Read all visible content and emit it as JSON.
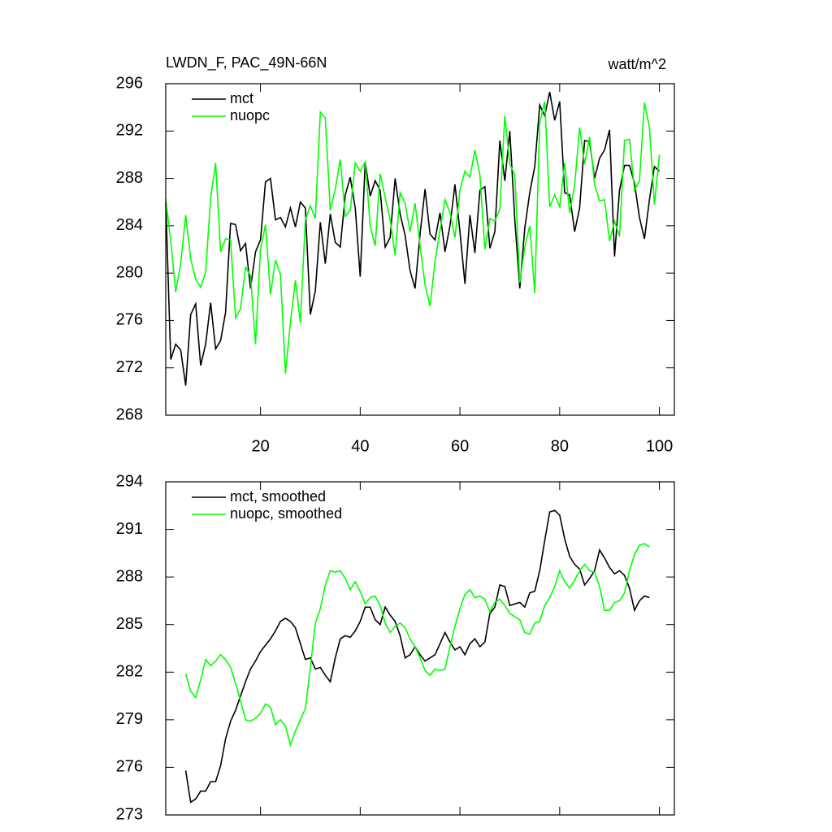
{
  "chart_data": [
    {
      "type": "line",
      "title": "LWDN_F, PAC_49N-66N",
      "units": "watt/m^2",
      "x": [
        1,
        2,
        3,
        4,
        5,
        6,
        7,
        8,
        9,
        10,
        11,
        12,
        13,
        14,
        15,
        16,
        17,
        18,
        19,
        20,
        21,
        22,
        23,
        24,
        25,
        26,
        27,
        28,
        29,
        30,
        31,
        32,
        33,
        34,
        35,
        36,
        37,
        38,
        39,
        40,
        41,
        42,
        43,
        44,
        45,
        46,
        47,
        48,
        49,
        50,
        51,
        52,
        53,
        54,
        55,
        56,
        57,
        58,
        59,
        60,
        61,
        62,
        63,
        64,
        65,
        66,
        67,
        68,
        69,
        70,
        71,
        72,
        73,
        74,
        75,
        76,
        77,
        78,
        79,
        80,
        81,
        82,
        83,
        84,
        85,
        86,
        87,
        88,
        89,
        90,
        91,
        92,
        93,
        94,
        95,
        96,
        97,
        98,
        99,
        100
      ],
      "series": [
        {
          "name": "mct",
          "color": "#000000",
          "values": [
            286,
            272.7,
            274,
            273.5,
            270.5,
            276.5,
            277.4,
            272.2,
            274,
            277.5,
            273.6,
            274.3,
            276.7,
            284.2,
            284.1,
            281.9,
            282.5,
            278.7,
            281.8,
            282.8,
            287.7,
            288,
            284.5,
            284.7,
            283.9,
            285.5,
            283.9,
            286,
            285.5,
            276.5,
            278.5,
            284.3,
            280.8,
            285,
            282.6,
            282.2,
            286.6,
            288.1,
            285.5,
            279.7,
            289.4,
            286.5,
            287.8,
            287,
            282.2,
            283,
            288,
            285,
            283.2,
            280.2,
            278.7,
            283.3,
            287.1,
            283.3,
            282.8,
            285.1,
            281.8,
            284,
            287.5,
            283.5,
            279.1,
            284.9,
            281.7,
            287,
            287.3,
            282.1,
            283.5,
            291.2,
            287.8,
            292,
            284.5,
            278.7,
            283.8,
            286.8,
            289,
            294.2,
            293.3,
            295.3,
            292.9,
            294.5,
            286.8,
            286.6,
            283.5,
            285.5,
            291.2,
            291.1,
            288,
            289.7,
            290.4,
            292.1,
            281.4,
            287,
            289.1,
            289.1,
            287.6,
            284.7,
            282.9,
            286.2,
            289,
            288.6
          ]
        },
        {
          "name": "nuopc",
          "color": "#00ff00",
          "values": [
            286.3,
            282.7,
            278.4,
            280.8,
            284.9,
            281.2,
            279.5,
            278.8,
            280.1,
            286.3,
            289.3,
            281.8,
            282.9,
            282.8,
            276.2,
            277,
            280.5,
            279.8,
            274,
            282,
            284.1,
            278.2,
            281.1,
            279.9,
            271.5,
            275.8,
            279.4,
            275.8,
            284.5,
            285.7,
            284.6,
            293.6,
            293.1,
            285.3,
            287.1,
            289.6,
            284.8,
            285.3,
            289.3,
            288.6,
            289.4,
            284,
            282.3,
            288.4,
            286.4,
            284.5,
            281.5,
            286.8,
            285.9,
            283.5,
            285.9,
            282.3,
            279,
            277.2,
            281,
            283.6,
            286.2,
            285.1,
            283,
            287,
            288.6,
            288.1,
            290.4,
            288.3,
            282,
            284.6,
            284.4,
            285.4,
            293.3,
            289.2,
            288.3,
            279.2,
            282.2,
            284,
            278.3,
            292.7,
            294.5,
            285.6,
            286.6,
            285.6,
            289.3,
            285.1,
            287.4,
            292.3,
            289.2,
            291.5,
            287.5,
            286.1,
            286.2,
            282.7,
            284.4,
            283.1,
            291.2,
            291.3,
            287,
            287.8,
            294.4,
            292.3,
            285.8,
            290
          ]
        }
      ],
      "xlim": [
        1,
        103
      ],
      "xticks": [
        20,
        40,
        60,
        80,
        100
      ],
      "ylim": [
        268,
        296
      ],
      "yticks": [
        268,
        272,
        276,
        280,
        284,
        288,
        292,
        296
      ],
      "legend": "upper left"
    },
    {
      "type": "line",
      "x": [
        5,
        6,
        7,
        8,
        9,
        10,
        11,
        12,
        13,
        14,
        15,
        16,
        17,
        18,
        19,
        20,
        21,
        22,
        23,
        24,
        25,
        26,
        27,
        28,
        29,
        30,
        31,
        32,
        33,
        34,
        35,
        36,
        37,
        38,
        39,
        40,
        41,
        42,
        43,
        44,
        45,
        46,
        47,
        48,
        49,
        50,
        51,
        52,
        53,
        54,
        55,
        56,
        57,
        58,
        59,
        60,
        61,
        62,
        63,
        64,
        65,
        66,
        67,
        68,
        69,
        70,
        71,
        72,
        73,
        74,
        75,
        76,
        77,
        78,
        79,
        80,
        81,
        82,
        83,
        84,
        85,
        86,
        87,
        88,
        89,
        90,
        91,
        92,
        93,
        94,
        95,
        96,
        97,
        98
      ],
      "series": [
        {
          "name": "mct, smoothed",
          "color": "#000000",
          "values": [
            275.8,
            273.8,
            274,
            274.5,
            274.5,
            275.1,
            275.1,
            276.1,
            277.8,
            278.9,
            279.6,
            280.5,
            281.4,
            282.2,
            282.7,
            283.3,
            283.7,
            284.1,
            284.6,
            285.2,
            285.4,
            285.2,
            284.8,
            283.8,
            282.8,
            282.9,
            282.2,
            282.3,
            281.8,
            281.4,
            282.9,
            284.1,
            284.3,
            284.2,
            284.6,
            285.2,
            286.1,
            286.1,
            285.3,
            285,
            286.1,
            285.6,
            285.2,
            284.3,
            282.9,
            283.1,
            283.6,
            283.1,
            282.7,
            282.9,
            283.1,
            283.8,
            284.5,
            283.9,
            283.4,
            283.6,
            283.1,
            283.8,
            284.1,
            283.6,
            283.9,
            285.7,
            286.1,
            287.5,
            287.4,
            286.2,
            286.3,
            286.4,
            286.1,
            287,
            287.1,
            288.4,
            290.3,
            292.1,
            292.2,
            291.9,
            290.4,
            289.3,
            288.8,
            288.5,
            287.5,
            287.9,
            288.4,
            289.7,
            289.2,
            288.6,
            288.2,
            288.4,
            288.1,
            287.3,
            285.9,
            286.5,
            286.8,
            286.7
          ]
        },
        {
          "name": "nuopc, smoothed",
          "color": "#00ff00",
          "values": [
            281.9,
            280.8,
            280.4,
            281.5,
            282.8,
            282.4,
            282.7,
            283.1,
            282.8,
            282.3,
            281.3,
            280.2,
            279,
            278.9,
            279.1,
            279.4,
            280,
            279.8,
            278.7,
            279,
            278.6,
            277.4,
            278.3,
            279,
            279.7,
            282.3,
            285.1,
            286,
            287.5,
            288.4,
            288.3,
            288.4,
            287.9,
            287.2,
            287.7,
            287.1,
            286.3,
            286.7,
            286.8,
            286.2,
            285.1,
            284.5,
            284.9,
            285.1,
            284.8,
            284.1,
            283.6,
            282.9,
            282.1,
            281.8,
            282.2,
            282.1,
            282.2,
            283.6,
            284.9,
            286,
            286.9,
            287.2,
            286.7,
            286.8,
            286.6,
            285.8,
            286.4,
            286.6,
            286.2,
            285.7,
            285.5,
            285.3,
            284.5,
            284.4,
            285.1,
            285.2,
            286.2,
            286.7,
            287.4,
            288.4,
            287.7,
            287.3,
            287.8,
            288.4,
            288.8,
            288.4,
            288.3,
            287.4,
            285.9,
            285.9,
            286.4,
            286.5,
            287,
            288.4,
            289.4,
            290,
            290.1,
            289.9
          ]
        }
      ],
      "xlim": [
        1,
        103
      ],
      "xticks": [
        20,
        40,
        60,
        80,
        100
      ],
      "ylim": [
        273,
        294
      ],
      "yticks": [
        273,
        276,
        279,
        282,
        285,
        288,
        291,
        294
      ],
      "legend": "upper left"
    }
  ]
}
